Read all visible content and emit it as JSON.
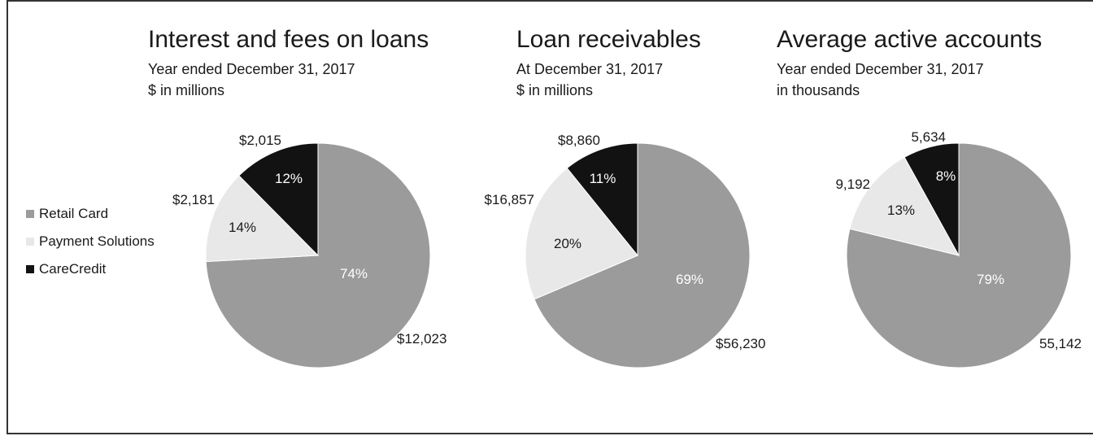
{
  "colors": {
    "retail_card": "#9b9b9b",
    "payment_solutions": "#e8e8e8",
    "carecredit": "#121212"
  },
  "legend": [
    "Retail Card",
    "Payment Solutions",
    "CareCredit"
  ],
  "chart_data": [
    {
      "type": "pie",
      "title": "Interest and fees on loans",
      "subtitle_lines": [
        "Year ended December 31, 2017",
        "$ in millions"
      ],
      "slices": [
        {
          "name": "Retail Card",
          "value": 12023,
          "value_label": "$12,023",
          "percent_label": "74%"
        },
        {
          "name": "Payment Solutions",
          "value": 2181,
          "value_label": "$2,181",
          "percent_label": "14%"
        },
        {
          "name": "CareCredit",
          "value": 2015,
          "value_label": "$2,015",
          "percent_label": "12%"
        }
      ]
    },
    {
      "type": "pie",
      "title": "Loan receivables",
      "subtitle_lines": [
        "At December 31, 2017",
        "$ in millions"
      ],
      "slices": [
        {
          "name": "Retail Card",
          "value": 56230,
          "value_label": "$56,230",
          "percent_label": "69%"
        },
        {
          "name": "Payment Solutions",
          "value": 16857,
          "value_label": "$16,857",
          "percent_label": "20%"
        },
        {
          "name": "CareCredit",
          "value": 8860,
          "value_label": "$8,860",
          "percent_label": "11%"
        }
      ]
    },
    {
      "type": "pie",
      "title": "Average active accounts",
      "subtitle_lines": [
        "Year ended December 31, 2017",
        "in thousands"
      ],
      "slices": [
        {
          "name": "Retail Card",
          "value": 55142,
          "value_label": "55,142",
          "percent_label": "79%"
        },
        {
          "name": "Payment Solutions",
          "value": 9192,
          "value_label": "9,192",
          "percent_label": "13%"
        },
        {
          "name": "CareCredit",
          "value": 5634,
          "value_label": "5,634",
          "percent_label": "8%"
        }
      ]
    }
  ]
}
